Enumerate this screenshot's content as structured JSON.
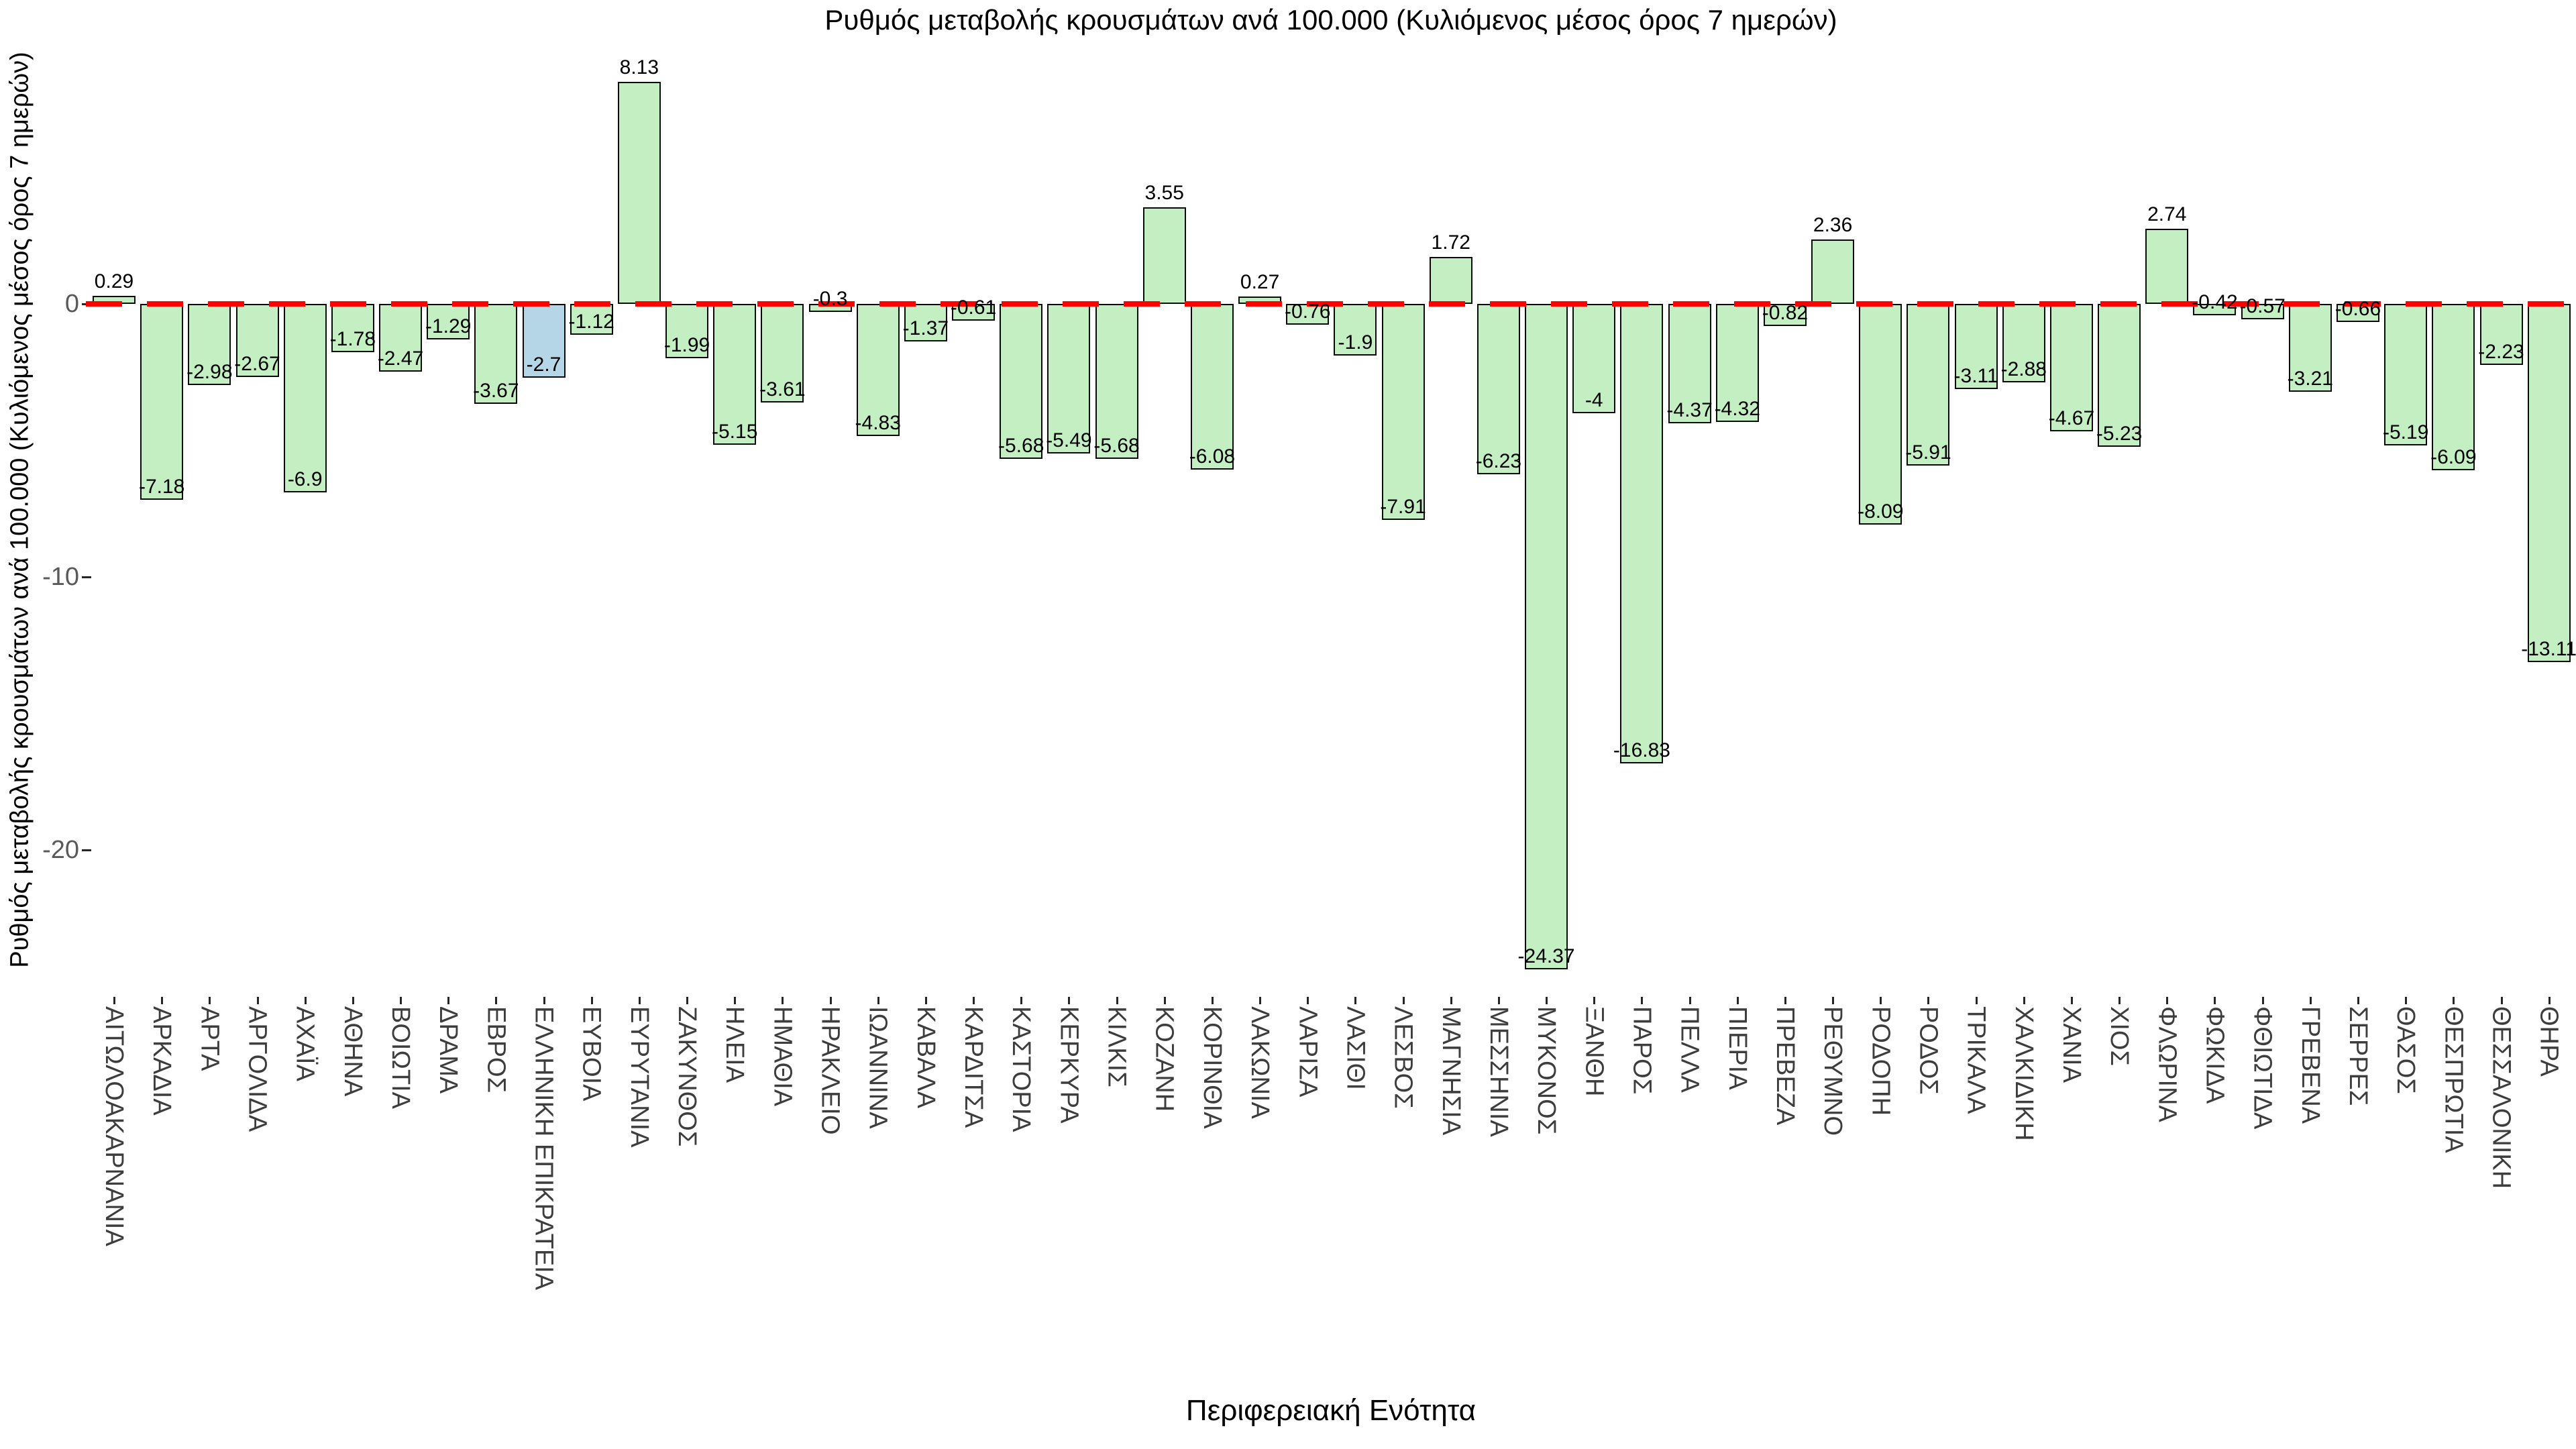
{
  "title": "Ρυθμός μεταβολής κρουσμάτων ανά 100.000 (Κυλιόμενος μέσος όρος 7 ημερών)",
  "y_axis_title": "Ρυθμός μεταβολής κρουσμάτων ανά 100.000 (Κυλιόμενος μέσος όρος 7 ημερών)",
  "x_axis_title": "Περιφερειακή Ενότητα",
  "colors": {
    "bar_green": "#c3efc3",
    "bar_blue": "#b5d6e7",
    "bar_border": "#0a0a0a",
    "zero_line_red": "#ff0000",
    "ytick_label": "#595959",
    "xtick_label": "#3d3d3d",
    "value_label": "#000000"
  },
  "chart_data": {
    "type": "bar",
    "title": "Ρυθμός μεταβολής κρουσμάτων ανά 100.000 (Κυλιόμενος μέσος όρος 7 ημερών)",
    "xlabel": "Περιφερειακή Ενότητα",
    "ylabel": "Ρυθμός μεταβολής κρουσμάτων ανά 100.000 (Κυλιόμενος μέσος όρος 7 ημερών)",
    "grid": false,
    "legend": false,
    "ylim": [
      -25.4,
      9.7
    ],
    "yticks": [
      0,
      -10,
      -20
    ],
    "zero_reference_line": "red dashed horizontal at 0",
    "highlight_index": 9,
    "highlight_category": "ΕΛΛΗΝΙΚΗ ΕΠΙΚΡΑΤΕΙΑ",
    "categories": [
      "ΑΙΤΩΛΟΑΚΑΡΝΑΝΙΑ",
      "ΑΡΚΑΔΙΑ",
      "ΑΡΤΑ",
      "ΑΡΓΟΛΙΔΑ",
      "ΑΧΑΪΑ",
      "ΑΘΗΝΑ",
      "ΒΟΙΩΤΙΑ",
      "ΔΡΑΜΑ",
      "ΕΒΡΟΣ",
      "ΕΛΛΗΝΙΚΗ ΕΠΙΚΡΑΤΕΙΑ",
      "ΕΥΒΟΙΑ",
      "ΕΥΡΥΤΑΝΙΑ",
      "ΖΑΚΥΝΘΟΣ",
      "ΗΛΕΙΑ",
      "ΗΜΑΘΙΑ",
      "ΗΡΑΚΛΕΙΟ",
      "ΙΩΑΝΝΙΝΑ",
      "ΚΑΒΑΛΑ",
      "ΚΑΡΔΙΤΣΑ",
      "ΚΑΣΤΟΡΙΑ",
      "ΚΕΡΚΥΡΑ",
      "ΚΙΛΚΙΣ",
      "ΚΟΖΑΝΗ",
      "ΚΟΡΙΝΘΙΑ",
      "ΛΑΚΩΝΙΑ",
      "ΛΑΡΙΣΑ",
      "ΛΑΣΙΘΙ",
      "ΛΕΣΒΟΣ",
      "ΜΑΓΝΗΣΙΑ",
      "ΜΕΣΣΗΝΙΑ",
      "ΜΥΚΟΝΟΣ",
      "ΞΑΝΘΗ",
      "ΠΑΡΟΣ",
      "ΠΕΛΛΑ",
      "ΠΙΕΡΙΑ",
      "ΠΡΕΒΕΖΑ",
      "ΡΕΘΥΜΝΟ",
      "ΡΟΔΟΠΗ",
      "ΡΟΔΟΣ",
      "ΤΡΙΚΑΛΑ",
      "ΧΑΛΚΙΔΙΚΗ",
      "ΧΑΝΙΑ",
      "ΧΙΟΣ",
      "ΦΛΩΡΙΝΑ",
      "ΦΩΚΙΔΑ",
      "ΦΘΙΩΤΙΔΑ",
      "ΓΡΕΒΕΝΑ",
      "ΣΕΡΡΕΣ",
      "ΘΑΣΟΣ",
      "ΘΕΣΠΡΩΤΙΑ",
      "ΘΕΣΣΑΛΟΝΙΚΗ",
      "ΘΗΡΑ"
    ],
    "values": [
      0.29,
      -7.18,
      -2.98,
      -2.67,
      -6.9,
      -1.78,
      -2.47,
      -1.29,
      -3.67,
      -2.7,
      -1.12,
      8.13,
      -1.99,
      -5.15,
      -3.61,
      -0.3,
      -4.83,
      -1.37,
      -0.61,
      -5.68,
      -5.49,
      -5.68,
      3.55,
      -6.08,
      0.27,
      -0.76,
      -1.9,
      -7.91,
      1.72,
      -6.23,
      -24.37,
      -4,
      -16.83,
      -4.37,
      -4.32,
      -0.82,
      2.36,
      -8.09,
      -5.91,
      -3.11,
      -2.88,
      -4.67,
      -5.23,
      2.74,
      -0.42,
      -0.57,
      -3.21,
      -0.66,
      -5.19,
      -6.09,
      -2.23,
      -13.11
    ]
  }
}
